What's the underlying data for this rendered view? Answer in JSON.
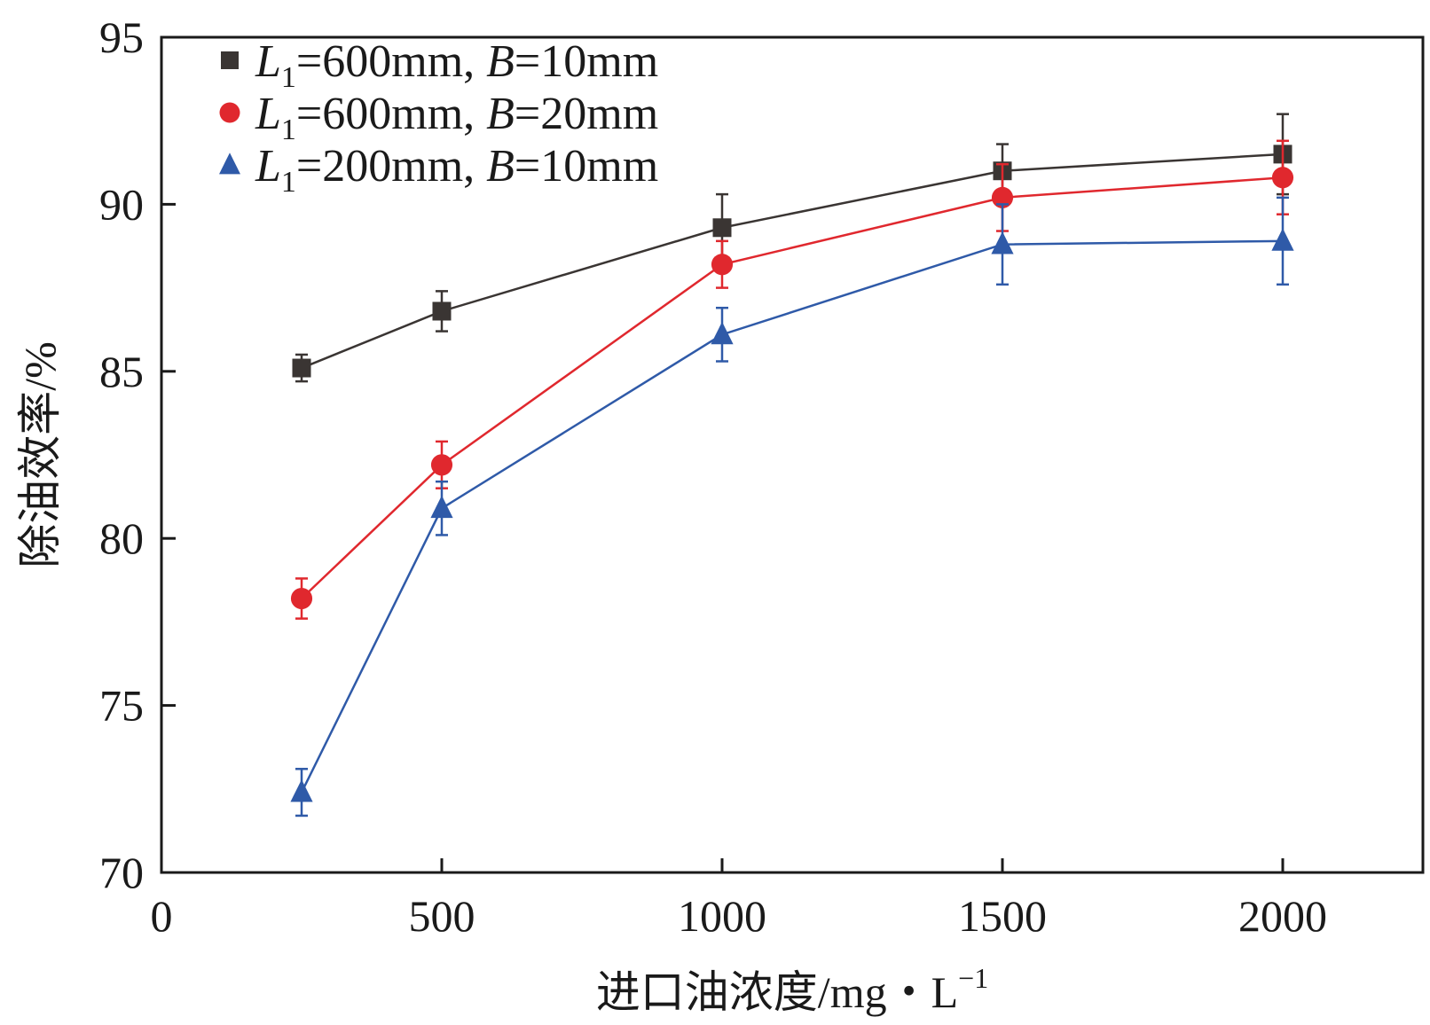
{
  "chart_data": {
    "type": "line",
    "title": "",
    "xlabel_prefix": "进口油浓度/mg・L",
    "xlabel_sup": "−1",
    "ylabel": "除油效率/%",
    "xlim": [
      0,
      2250
    ],
    "ylim": [
      70,
      95
    ],
    "xticks": [
      0,
      500,
      1000,
      1500,
      2000
    ],
    "yticks": [
      70,
      75,
      80,
      85,
      90,
      95
    ],
    "grid": false,
    "legend_position": "top-left",
    "x": [
      250,
      500,
      1000,
      1500,
      2000
    ],
    "series": [
      {
        "name": "L1=600mm, B=10mm",
        "legend_L": "L",
        "legend_sub": "1",
        "legend_mid": "=600mm, ",
        "legend_B": "B",
        "legend_end": "=10mm",
        "marker": "square",
        "color": "#3a3533",
        "values": [
          85.1,
          86.8,
          89.3,
          91.0,
          91.5
        ],
        "errors": [
          0.4,
          0.6,
          1.0,
          0.8,
          1.2
        ]
      },
      {
        "name": "L1=600mm, B=20mm",
        "legend_L": "L",
        "legend_sub": "1",
        "legend_mid": "=600mm, ",
        "legend_B": "B",
        "legend_end": "=20mm",
        "marker": "circle",
        "color": "#e0282e",
        "values": [
          78.2,
          82.2,
          88.2,
          90.2,
          90.8
        ],
        "errors": [
          0.6,
          0.7,
          0.7,
          1.0,
          1.1
        ]
      },
      {
        "name": "L1=200mm, B=10mm",
        "legend_L": "L",
        "legend_sub": "1",
        "legend_mid": "=200mm, ",
        "legend_B": "B",
        "legend_end": "=10mm",
        "marker": "triangle",
        "color": "#2f5aa8",
        "values": [
          72.4,
          80.9,
          86.1,
          88.8,
          88.9
        ],
        "errors": [
          0.7,
          0.8,
          0.8,
          1.2,
          1.3
        ]
      }
    ]
  }
}
